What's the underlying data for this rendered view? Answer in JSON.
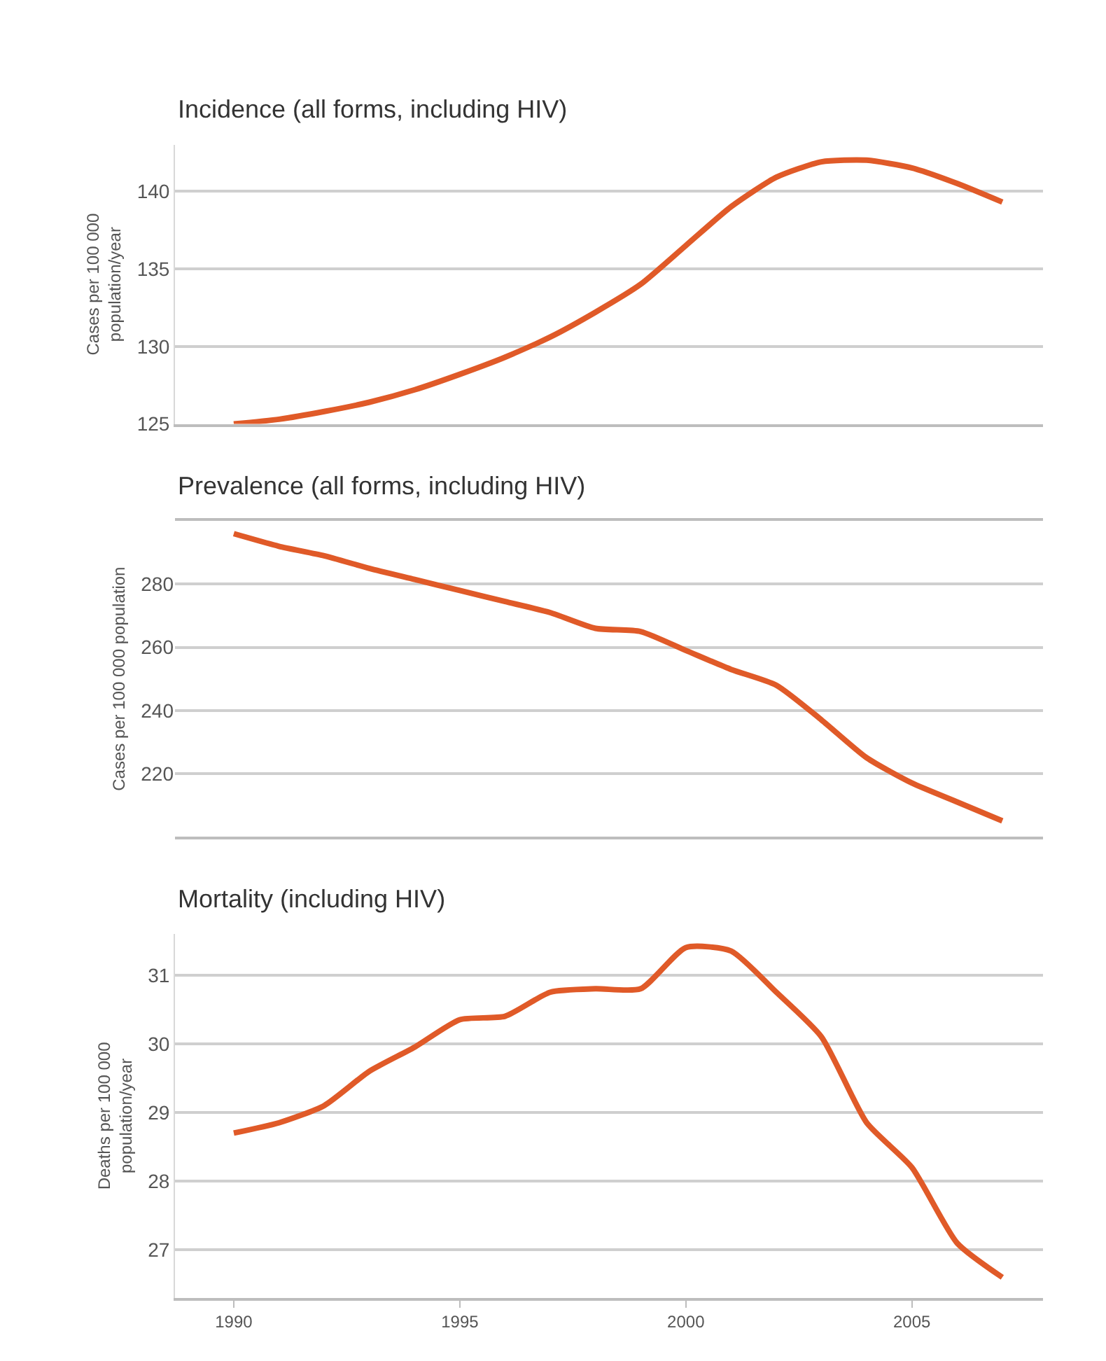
{
  "chart_data": [
    {
      "type": "line",
      "title": "Incidence (all forms, including HIV)",
      "ylabel": "Cases per 100 000\npopulation/year",
      "x": [
        1990,
        1991,
        1992,
        1993,
        1994,
        1995,
        1996,
        1997,
        1998,
        1999,
        2000,
        2001,
        2002,
        2003,
        2004,
        2005,
        2006,
        2007
      ],
      "series": [
        {
          "color": "#e05a28",
          "values": [
            125.0,
            125.3,
            125.8,
            126.4,
            127.2,
            128.2,
            129.3,
            130.6,
            132.2,
            134.0,
            136.5,
            139.0,
            140.9,
            141.9,
            142.0,
            141.5,
            140.5,
            139.3
          ]
        }
      ],
      "xlim": [
        1988.7,
        2007.9
      ],
      "ylim": [
        125,
        143
      ],
      "yticks": [
        125,
        130,
        135,
        140
      ],
      "tick_labels": "y",
      "grid": "y",
      "marker": "none",
      "line_style": "solid"
    },
    {
      "type": "line",
      "title": "Prevalence (all forms, including HIV)",
      "ylabel": "Cases per 100 000 population",
      "x": [
        1990,
        1991,
        1992,
        1993,
        1994,
        1995,
        1996,
        1997,
        1998,
        1999,
        2000,
        2001,
        2002,
        2003,
        2004,
        2005,
        2006,
        2007
      ],
      "series": [
        {
          "color": "#e05a28",
          "values": [
            296,
            292,
            289,
            285,
            281.5,
            278,
            274.5,
            271,
            266,
            265,
            259,
            253,
            248,
            237,
            225,
            217,
            211,
            205
          ]
        }
      ],
      "xlim": [
        1988.7,
        2007.9
      ],
      "ylim": [
        200,
        300
      ],
      "yticks": [
        {
          "value": 200,
          "label": null
        },
        220,
        240,
        260,
        280,
        {
          "value": 300,
          "label": null
        }
      ],
      "tick_labels": "y",
      "grid": "y",
      "marker": "none",
      "line_style": "solid"
    },
    {
      "type": "line",
      "title": "Mortality (including HIV)",
      "ylabel": "Deaths per 100 000\npopulation/year",
      "x": [
        1990,
        1991,
        1992,
        1993,
        1994,
        1995,
        1996,
        1997,
        1998,
        1999,
        2000,
        2001,
        2002,
        2003,
        2004,
        2005,
        2006,
        2007
      ],
      "series": [
        {
          "color": "#e05a28",
          "values": [
            28.7,
            28.85,
            29.1,
            29.6,
            29.95,
            30.35,
            30.4,
            30.75,
            30.8,
            30.8,
            31.4,
            31.35,
            30.75,
            30.1,
            28.85,
            28.2,
            27.1,
            26.6
          ]
        }
      ],
      "xlim": [
        1988.7,
        2007.9
      ],
      "xticks": [
        1990,
        1995,
        2000,
        2005
      ],
      "ylim": [
        26.3,
        31.6
      ],
      "yticks": [
        27,
        28,
        29,
        30,
        31
      ],
      "grid": "y",
      "marker": "none",
      "line_style": "solid"
    }
  ]
}
